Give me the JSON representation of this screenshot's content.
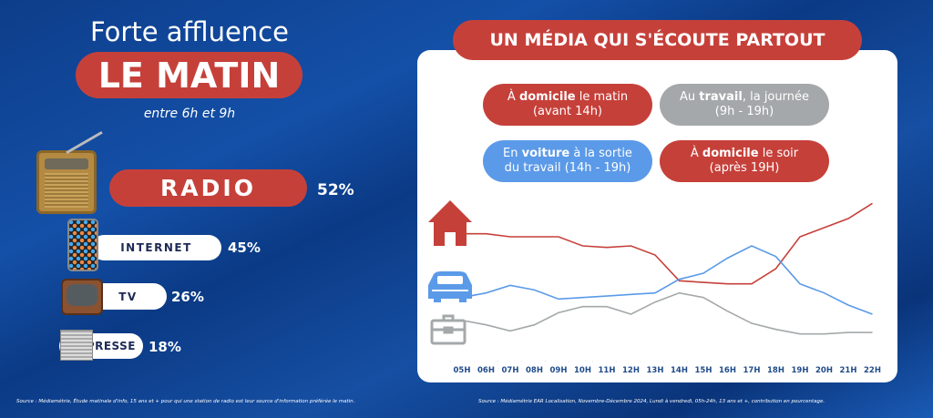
{
  "left": {
    "title": "Forte affluence",
    "highlight": "LE MATIN",
    "subtitle": "entre 6h et 9h",
    "media": [
      {
        "label": "RADIO",
        "value": "52%",
        "icon": "radio-icon"
      },
      {
        "label": "INTERNET",
        "value": "45%",
        "icon": "smartphone-icon"
      },
      {
        "label": "TV",
        "value": "26%",
        "icon": "tv-icon"
      },
      {
        "label": "PRESSE",
        "value": "18%",
        "icon": "newspaper-icon"
      }
    ],
    "source": "Source : Médiamétrie, Étude matinale d'info, 15 ans et + pour qui une station de radio est leur source d'information préférée le matin."
  },
  "right": {
    "title": "UN MÉDIA QUI S'ÉCOUTE PARTOUT",
    "legend": [
      {
        "pre": "À ",
        "bold": "domicile",
        "post": " le matin",
        "line2": "(avant 14h)",
        "color": "#c6403a"
      },
      {
        "pre": "Au ",
        "bold": "travail",
        "post": ", la journée",
        "line2": "(9h - 19h)",
        "color": "#a4a8aa"
      },
      {
        "pre": "En ",
        "bold": "voiture",
        "post": " à la sortie",
        "line2": "du travail (14h - 19h)",
        "color": "#5b9ae8"
      },
      {
        "pre": "À ",
        "bold": "domicile",
        "post": " le soir",
        "line2": "(après 19H)",
        "color": "#c6403a"
      }
    ],
    "source": "Source : Médiamétrie EAR Localisation, Novembre-Décembre 2024, Lundi à vendredi, 05h-24h, 13 ans et +, contribution en pourcentage."
  },
  "chart_data": {
    "type": "line",
    "categories": [
      "05H",
      "06H",
      "07H",
      "08H",
      "09H",
      "10H",
      "11H",
      "12H",
      "13H",
      "14H",
      "15H",
      "16H",
      "17H",
      "18H",
      "19H",
      "20H",
      "21H",
      "22H"
    ],
    "series": [
      {
        "icon": "house-icon",
        "color": "#c6403a",
        "values": [
          72,
          72,
          70,
          70,
          70,
          64,
          63,
          64,
          58,
          41,
          40,
          39,
          39,
          49,
          70,
          76,
          82,
          92
        ]
      },
      {
        "icon": "car-icon",
        "color": "#5b9ae8",
        "values": [
          30,
          33,
          38,
          35,
          29,
          30,
          31,
          32,
          33,
          42,
          46,
          56,
          64,
          57,
          39,
          33,
          25,
          19
        ]
      },
      {
        "icon": "briefcase-icon",
        "color": "#a4a8aa",
        "values": [
          15,
          12,
          8,
          12,
          20,
          24,
          24,
          19,
          27,
          33,
          30,
          21,
          13,
          9,
          6,
          6,
          7,
          7
        ]
      }
    ],
    "yaxis": "none",
    "grid": false
  }
}
